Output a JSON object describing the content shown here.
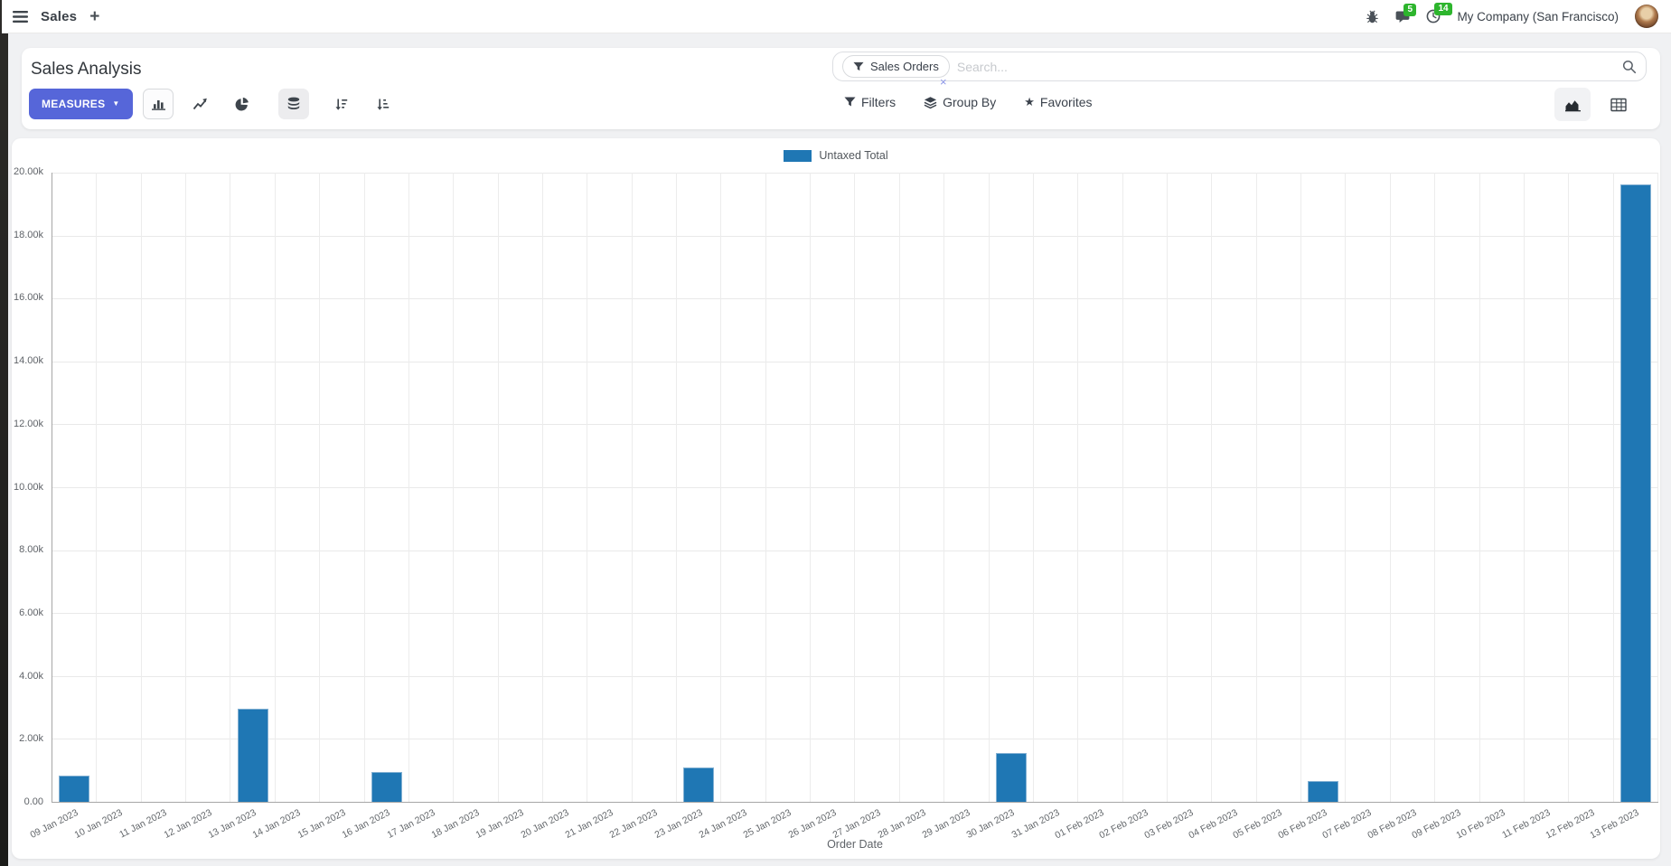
{
  "navbar": {
    "app_name": "Sales",
    "new_tab": "+",
    "messages_badge": "5",
    "activities_badge": "14",
    "company": "My Company (San Francisco)"
  },
  "control_panel": {
    "title": "Sales Analysis",
    "measures_label": "MEASURES",
    "filters_label": "Filters",
    "group_by_label": "Group By",
    "favorites_label": "Favorites",
    "search": {
      "facet_label": "Sales Orders",
      "placeholder": "Search...",
      "facet_remove": "×"
    }
  },
  "colors": {
    "accent": "#5666d9",
    "bar": "#1f77b4",
    "badge_green": "#2db52d"
  },
  "chart_data": {
    "type": "bar",
    "title": "",
    "legend": [
      "Untaxed Total"
    ],
    "legend_position": "top-center",
    "grid": true,
    "xlabel": "Order Date",
    "ylabel": "",
    "ylim": [
      0,
      20000
    ],
    "y_tick_labels": [
      "20.00k",
      "18.00k",
      "16.00k",
      "14.00k",
      "12.00k",
      "10.00k",
      "8.00k",
      "6.00k",
      "4.00k",
      "2.00k",
      "0.00"
    ],
    "categories": [
      "09 Jan 2023",
      "10 Jan 2023",
      "11 Jan 2023",
      "12 Jan 2023",
      "13 Jan 2023",
      "14 Jan 2023",
      "15 Jan 2023",
      "16 Jan 2023",
      "17 Jan 2023",
      "18 Jan 2023",
      "19 Jan 2023",
      "20 Jan 2023",
      "21 Jan 2023",
      "22 Jan 2023",
      "23 Jan 2023",
      "24 Jan 2023",
      "25 Jan 2023",
      "26 Jan 2023",
      "27 Jan 2023",
      "28 Jan 2023",
      "29 Jan 2023",
      "30 Jan 2023",
      "31 Jan 2023",
      "01 Feb 2023",
      "02 Feb 2023",
      "03 Feb 2023",
      "04 Feb 2023",
      "05 Feb 2023",
      "06 Feb 2023",
      "07 Feb 2023",
      "08 Feb 2023",
      "09 Feb 2023",
      "10 Feb 2023",
      "11 Feb 2023",
      "12 Feb 2023",
      "13 Feb 2023"
    ],
    "series": [
      {
        "name": "Untaxed Total",
        "color": "#1f77b4",
        "values": [
          820,
          0,
          0,
          0,
          2950,
          0,
          0,
          940,
          0,
          0,
          0,
          0,
          0,
          0,
          1090,
          0,
          0,
          0,
          0,
          0,
          0,
          1540,
          0,
          0,
          0,
          0,
          0,
          0,
          660,
          0,
          0,
          0,
          0,
          0,
          0,
          19630
        ]
      }
    ]
  }
}
